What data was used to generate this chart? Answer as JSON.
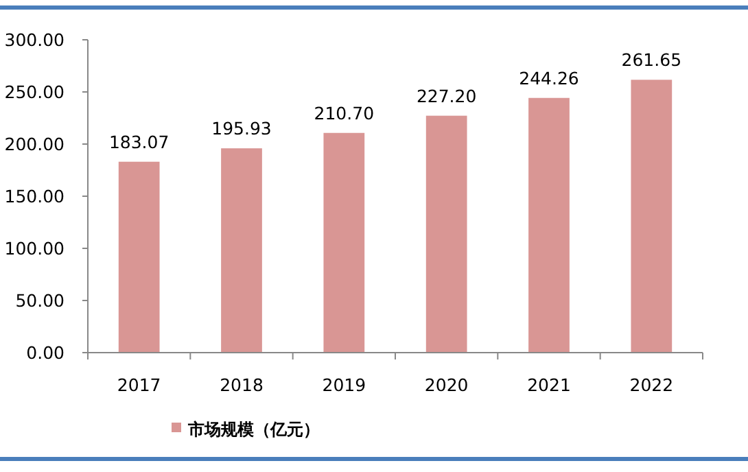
{
  "chart_data": {
    "type": "bar",
    "categories": [
      "2017",
      "2018",
      "2019",
      "2020",
      "2021",
      "2022"
    ],
    "series": [
      {
        "name": "市场规模（亿元）",
        "color": "#d99694",
        "values": [
          183.07,
          195.93,
          210.7,
          227.2,
          244.26,
          261.65
        ]
      }
    ],
    "ylim": [
      0,
      300
    ],
    "yticks": [
      {
        "value": 0,
        "label": "0.00"
      },
      {
        "value": 50,
        "label": "50.00"
      },
      {
        "value": 100,
        "label": "100.00"
      },
      {
        "value": 150,
        "label": "150.00"
      },
      {
        "value": 200,
        "label": "200.00"
      },
      {
        "value": 250,
        "label": "250.00"
      },
      {
        "value": 300,
        "label": "300.00"
      }
    ],
    "value_labels": [
      "183.07",
      "195.93",
      "210.70",
      "227.20",
      "244.26",
      "261.65"
    ],
    "grid": false,
    "legend": "bottom left"
  }
}
